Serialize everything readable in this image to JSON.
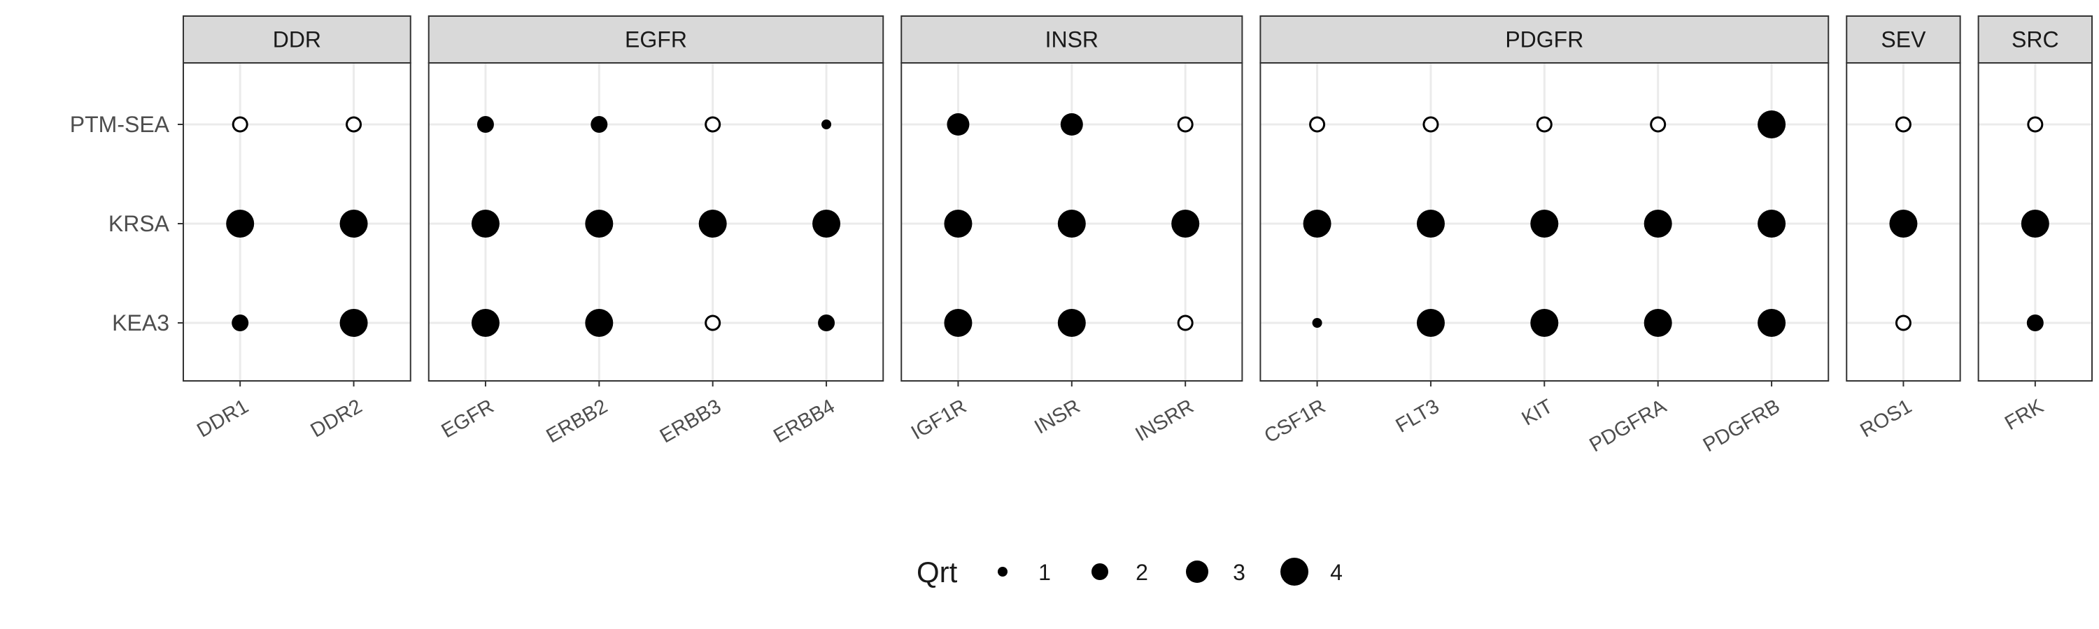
{
  "chart_data": {
    "type": "scatter",
    "y_categories": [
      "KEA3",
      "KRSA",
      "PTM-SEA"
    ],
    "facets": [
      {
        "name": "DDR",
        "categories": [
          "DDR1",
          "DDR2"
        ]
      },
      {
        "name": "EGFR",
        "categories": [
          "EGFR",
          "ERBB2",
          "ERBB3",
          "ERBB4"
        ]
      },
      {
        "name": "INSR",
        "categories": [
          "IGF1R",
          "INSR",
          "INSRR"
        ]
      },
      {
        "name": "PDGFR",
        "categories": [
          "CSF1R",
          "FLT3",
          "KIT",
          "PDGFRA",
          "PDGFRB"
        ]
      },
      {
        "name": "SEV",
        "categories": [
          "ROS1"
        ]
      },
      {
        "name": "SRC",
        "categories": [
          "FRK"
        ]
      }
    ],
    "points": [
      {
        "facet": "DDR",
        "x": "DDR1",
        "y": "PTM-SEA",
        "qrt": null
      },
      {
        "facet": "DDR",
        "x": "DDR1",
        "y": "KRSA",
        "qrt": 4
      },
      {
        "facet": "DDR",
        "x": "DDR1",
        "y": "KEA3",
        "qrt": 2
      },
      {
        "facet": "DDR",
        "x": "DDR2",
        "y": "PTM-SEA",
        "qrt": null
      },
      {
        "facet": "DDR",
        "x": "DDR2",
        "y": "KRSA",
        "qrt": 4
      },
      {
        "facet": "DDR",
        "x": "DDR2",
        "y": "KEA3",
        "qrt": 4
      },
      {
        "facet": "EGFR",
        "x": "EGFR",
        "y": "PTM-SEA",
        "qrt": 2
      },
      {
        "facet": "EGFR",
        "x": "EGFR",
        "y": "KRSA",
        "qrt": 4
      },
      {
        "facet": "EGFR",
        "x": "EGFR",
        "y": "KEA3",
        "qrt": 4
      },
      {
        "facet": "EGFR",
        "x": "ERBB2",
        "y": "PTM-SEA",
        "qrt": 2
      },
      {
        "facet": "EGFR",
        "x": "ERBB2",
        "y": "KRSA",
        "qrt": 4
      },
      {
        "facet": "EGFR",
        "x": "ERBB2",
        "y": "KEA3",
        "qrt": 4
      },
      {
        "facet": "EGFR",
        "x": "ERBB3",
        "y": "PTM-SEA",
        "qrt": null
      },
      {
        "facet": "EGFR",
        "x": "ERBB3",
        "y": "KRSA",
        "qrt": 4
      },
      {
        "facet": "EGFR",
        "x": "ERBB3",
        "y": "KEA3",
        "qrt": null
      },
      {
        "facet": "EGFR",
        "x": "ERBB4",
        "y": "PTM-SEA",
        "qrt": 1
      },
      {
        "facet": "EGFR",
        "x": "ERBB4",
        "y": "KRSA",
        "qrt": 4
      },
      {
        "facet": "EGFR",
        "x": "ERBB4",
        "y": "KEA3",
        "qrt": 2
      },
      {
        "facet": "INSR",
        "x": "IGF1R",
        "y": "PTM-SEA",
        "qrt": 3
      },
      {
        "facet": "INSR",
        "x": "IGF1R",
        "y": "KRSA",
        "qrt": 4
      },
      {
        "facet": "INSR",
        "x": "IGF1R",
        "y": "KEA3",
        "qrt": 4
      },
      {
        "facet": "INSR",
        "x": "INSR",
        "y": "PTM-SEA",
        "qrt": 3
      },
      {
        "facet": "INSR",
        "x": "INSR",
        "y": "KRSA",
        "qrt": 4
      },
      {
        "facet": "INSR",
        "x": "INSR",
        "y": "KEA3",
        "qrt": 4
      },
      {
        "facet": "INSR",
        "x": "INSRR",
        "y": "PTM-SEA",
        "qrt": null
      },
      {
        "facet": "INSR",
        "x": "INSRR",
        "y": "KRSA",
        "qrt": 4
      },
      {
        "facet": "INSR",
        "x": "INSRR",
        "y": "KEA3",
        "qrt": null
      },
      {
        "facet": "PDGFR",
        "x": "CSF1R",
        "y": "PTM-SEA",
        "qrt": null
      },
      {
        "facet": "PDGFR",
        "x": "CSF1R",
        "y": "KRSA",
        "qrt": 4
      },
      {
        "facet": "PDGFR",
        "x": "CSF1R",
        "y": "KEA3",
        "qrt": 1
      },
      {
        "facet": "PDGFR",
        "x": "FLT3",
        "y": "PTM-SEA",
        "qrt": null
      },
      {
        "facet": "PDGFR",
        "x": "FLT3",
        "y": "KRSA",
        "qrt": 4
      },
      {
        "facet": "PDGFR",
        "x": "FLT3",
        "y": "KEA3",
        "qrt": 4
      },
      {
        "facet": "PDGFR",
        "x": "KIT",
        "y": "PTM-SEA",
        "qrt": null
      },
      {
        "facet": "PDGFR",
        "x": "KIT",
        "y": "KRSA",
        "qrt": 4
      },
      {
        "facet": "PDGFR",
        "x": "KIT",
        "y": "KEA3",
        "qrt": 4
      },
      {
        "facet": "PDGFR",
        "x": "PDGFRA",
        "y": "PTM-SEA",
        "qrt": null
      },
      {
        "facet": "PDGFR",
        "x": "PDGFRA",
        "y": "KRSA",
        "qrt": 4
      },
      {
        "facet": "PDGFR",
        "x": "PDGFRA",
        "y": "KEA3",
        "qrt": 4
      },
      {
        "facet": "PDGFR",
        "x": "PDGFRB",
        "y": "PTM-SEA",
        "qrt": 4
      },
      {
        "facet": "PDGFR",
        "x": "PDGFRB",
        "y": "KRSA",
        "qrt": 4
      },
      {
        "facet": "PDGFR",
        "x": "PDGFRB",
        "y": "KEA3",
        "qrt": 4
      },
      {
        "facet": "SEV",
        "x": "ROS1",
        "y": "PTM-SEA",
        "qrt": null
      },
      {
        "facet": "SEV",
        "x": "ROS1",
        "y": "KRSA",
        "qrt": 4
      },
      {
        "facet": "SEV",
        "x": "ROS1",
        "y": "KEA3",
        "qrt": null
      },
      {
        "facet": "SRC",
        "x": "FRK",
        "y": "PTM-SEA",
        "qrt": null
      },
      {
        "facet": "SRC",
        "x": "FRK",
        "y": "KRSA",
        "qrt": 4
      },
      {
        "facet": "SRC",
        "x": "FRK",
        "y": "KEA3",
        "qrt": 2
      }
    ],
    "legend": {
      "title": "Qrt",
      "values": [
        1,
        2,
        3,
        4
      ],
      "placement": "bottom"
    },
    "grid": true,
    "title": "",
    "xlabel": "",
    "ylabel": ""
  }
}
